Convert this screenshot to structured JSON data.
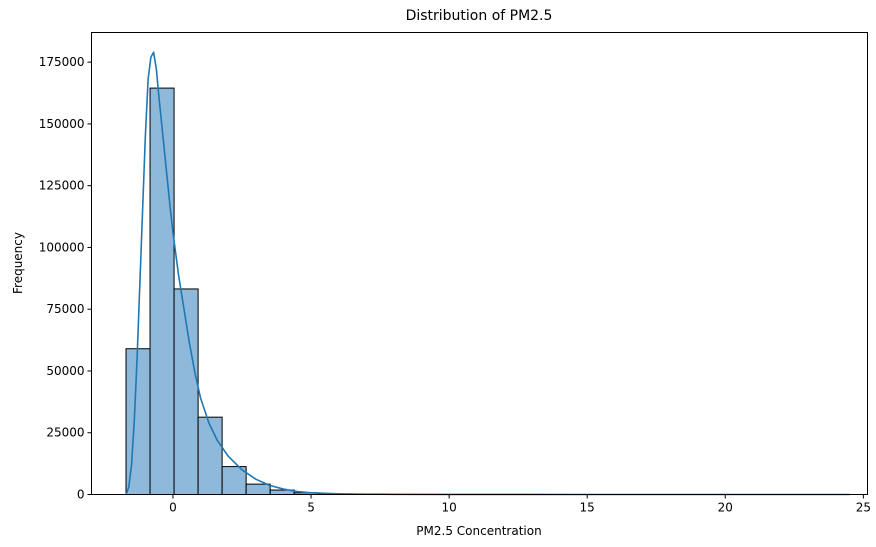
{
  "chart_data": {
    "type": "bar",
    "title": "Distribution of PM2.5",
    "xlabel": "PM2.5 Concentration",
    "ylabel": "Frequency",
    "xlim": [
      -2.95,
      25.15
    ],
    "ylim": [
      0,
      187000
    ],
    "xticks": [
      0,
      5,
      10,
      15,
      20,
      25
    ],
    "yticks": [
      0,
      25000,
      50000,
      75000,
      100000,
      125000,
      150000,
      175000
    ],
    "grid": false,
    "histogram": {
      "bin_edges": [
        -1.7,
        -0.83,
        0.04,
        0.91,
        1.78,
        2.65,
        3.52,
        4.39,
        5.26,
        6.13,
        7.0,
        7.87,
        8.74,
        9.61,
        10.48,
        11.35,
        12.22,
        13.09,
        13.96,
        14.83,
        15.7,
        16.57,
        17.44,
        18.31,
        19.18,
        20.05,
        20.92,
        21.79,
        22.66,
        23.53,
        24.4
      ],
      "counts": [
        59000,
        164500,
        83200,
        31300,
        11300,
        4200,
        1800,
        700,
        300,
        150,
        80,
        40,
        20,
        10,
        5,
        3,
        2,
        1,
        1,
        1,
        1,
        1,
        0,
        0,
        0,
        0,
        0,
        0,
        0,
        1
      ]
    },
    "kde": {
      "x": [
        -1.7,
        -1.6,
        -1.5,
        -1.4,
        -1.3,
        -1.2,
        -1.1,
        -1.0,
        -0.9,
        -0.8,
        -0.7,
        -0.6,
        -0.5,
        -0.4,
        -0.3,
        -0.2,
        -0.1,
        0.0,
        0.2,
        0.4,
        0.6,
        0.8,
        1.0,
        1.3,
        1.6,
        2.0,
        2.5,
        3.0,
        3.5,
        4.0,
        4.5,
        5.0,
        6.0,
        7.0,
        8.0,
        10.0,
        15.0,
        20.0,
        24.5
      ],
      "y": [
        0,
        3000,
        12000,
        30000,
        55000,
        85000,
        115000,
        145000,
        168000,
        177000,
        179000,
        172000,
        160000,
        149000,
        138000,
        127000,
        116000,
        106000,
        89000,
        75000,
        61000,
        49000,
        39000,
        29000,
        22000,
        15500,
        10000,
        6200,
        3700,
        2200,
        1200,
        700,
        300,
        150,
        80,
        30,
        5,
        2,
        0
      ]
    },
    "bar_color": "#8fb9da",
    "bar_edge_color": "#000000",
    "line_color": "#1f77b4"
  }
}
